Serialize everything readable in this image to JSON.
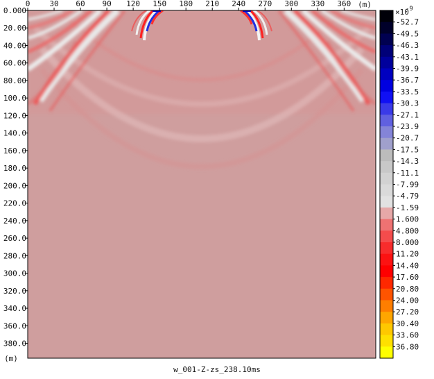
{
  "chart_data": {
    "type": "heatmap",
    "title": "w_001-Z-zs_238.10ms",
    "xlabel": "(m)",
    "ylabel": "(m)",
    "x_ticks": [
      0,
      30,
      60,
      90,
      120,
      150,
      180,
      210,
      240,
      270,
      300,
      330,
      360
    ],
    "x_tick_labels": [
      "0",
      "30",
      "60",
      "90",
      "120",
      "150",
      "180",
      "210",
      "240",
      "270",
      "300",
      "330",
      "360"
    ],
    "y_ticks": [
      0,
      20,
      40,
      60,
      80,
      100,
      120,
      140,
      160,
      180,
      200,
      220,
      240,
      260,
      280,
      300,
      320,
      340,
      360,
      380
    ],
    "y_tick_labels": [
      "0.000",
      "20.00",
      "40.00",
      "60.00",
      "80.00",
      "100.0",
      "120.0",
      "140.0",
      "160.0",
      "180.0",
      "200.0",
      "220.0",
      "240.0",
      "260.0",
      "280.0",
      "300.0",
      "320.0",
      "340.0",
      "360.0",
      "380.0"
    ],
    "xlim": [
      0,
      396
    ],
    "ylim": [
      0,
      397
    ],
    "background_color": "#cf9e9e",
    "colorbar": {
      "exponent_label": "×10",
      "exponent": "-9",
      "labels": [
        "-52.7",
        "-49.5",
        "-46.3",
        "-43.1",
        "-39.9",
        "-36.7",
        "-33.5",
        "-30.3",
        "-27.1",
        "-23.9",
        "-20.7",
        "-17.5",
        "-14.3",
        "-11.1",
        "-7.99",
        "-4.79",
        "-1.59",
        "1.600",
        "4.800",
        "8.000",
        "11.20",
        "14.40",
        "17.60",
        "20.80",
        "24.00",
        "27.20",
        "30.40",
        "33.60",
        "36.80"
      ],
      "colors": [
        "#000008",
        "#00002a",
        "#000050",
        "#000078",
        "#00009c",
        "#0000c0",
        "#0000e0",
        "#1010f4",
        "#3a3ae8",
        "#6060e0",
        "#8484d8",
        "#a0a0cc",
        "#bcbcbc",
        "#c8c8c8",
        "#d2d2d2",
        "#dadada",
        "#e2e2e2",
        "#e6a8a8",
        "#ee7272",
        "#f44c4c",
        "#f82c2c",
        "#fc1212",
        "#ff0000",
        "#ff2800",
        "#ff5400",
        "#ff7e00",
        "#ffa600",
        "#ffc800",
        "#ffe000",
        "#ffff00"
      ]
    }
  }
}
